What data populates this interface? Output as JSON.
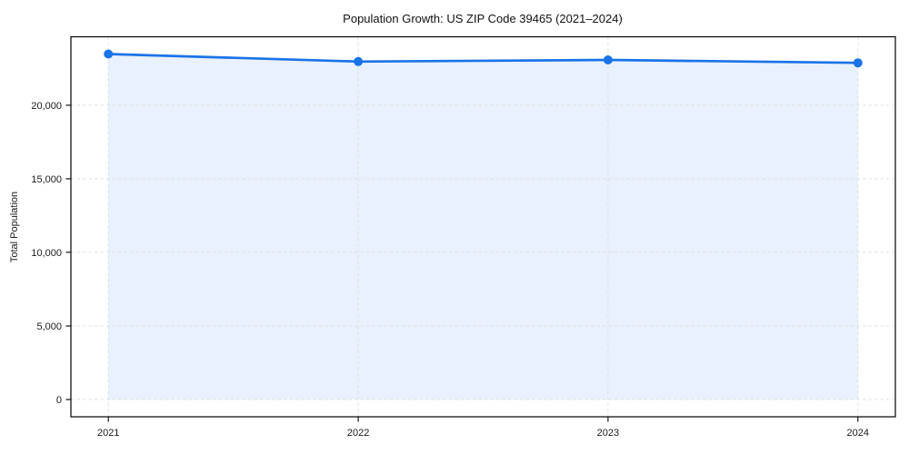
{
  "chart": {
    "title": "Population Growth: US ZIP Code 39465 (2021–2024)",
    "ylabel": "Total Population"
  },
  "chart_data": {
    "type": "area",
    "title": "Population Growth: US ZIP Code 39465 (2021–2024)",
    "xlabel": "",
    "ylabel": "Total Population",
    "x": [
      2021,
      2022,
      2023,
      2024
    ],
    "categories": [
      "2021",
      "2022",
      "2023",
      "2024"
    ],
    "series": [
      {
        "name": "Total Population",
        "values": [
          23480,
          22970,
          23080,
          22880
        ]
      }
    ],
    "fill_baseline": 0,
    "xlim": [
      2020.85,
      2024.15
    ],
    "ylim": [
      -1174,
      24654
    ],
    "yticks": [
      0,
      5000,
      10000,
      15000,
      20000
    ],
    "ytick_labels": [
      "0",
      "5,000",
      "10,000",
      "15,000",
      "20,000"
    ],
    "grid": true,
    "grid_style": "dashed",
    "legend": false,
    "marker": "circle",
    "marker_radius": 5,
    "colors": {
      "line": "#1a73e8",
      "marker": "#1a73e8",
      "fill": "rgba(26,115,232,0.10)",
      "grid": "#e0e0e0",
      "spine": "#000000",
      "text": "#1a1a1a",
      "background": "#ffffff"
    }
  }
}
